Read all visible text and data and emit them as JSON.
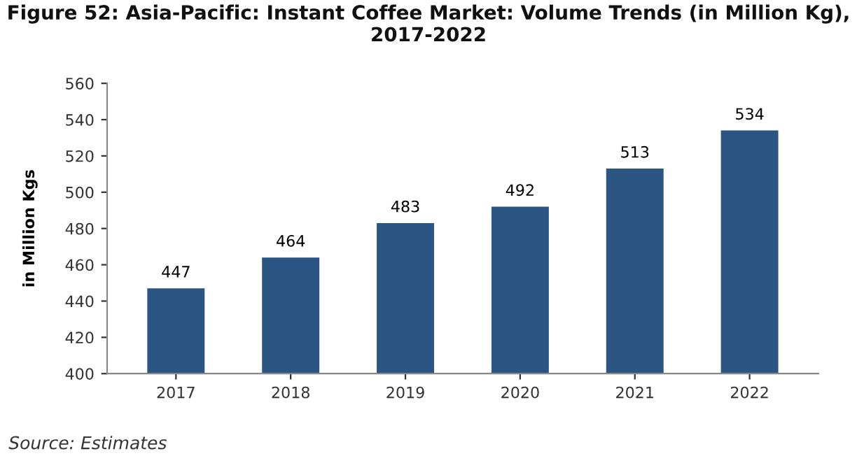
{
  "chart_data": {
    "type": "bar",
    "title": "Figure 52: Asia-Pacific: Instant Coffee Market: Volume Trends (in Million Kg),\n2017-2022",
    "ylabel": "in Million Kgs",
    "categories": [
      "2017",
      "2018",
      "2019",
      "2020",
      "2021",
      "2022"
    ],
    "values": [
      447,
      464,
      483,
      492,
      513,
      534
    ],
    "color": "#2b5582",
    "ylim": [
      400,
      560
    ],
    "yticks": [
      400,
      420,
      440,
      460,
      480,
      500,
      520,
      540,
      560
    ],
    "grid": false,
    "data_labels": true,
    "annotations": [
      "Source: Estimates"
    ]
  }
}
